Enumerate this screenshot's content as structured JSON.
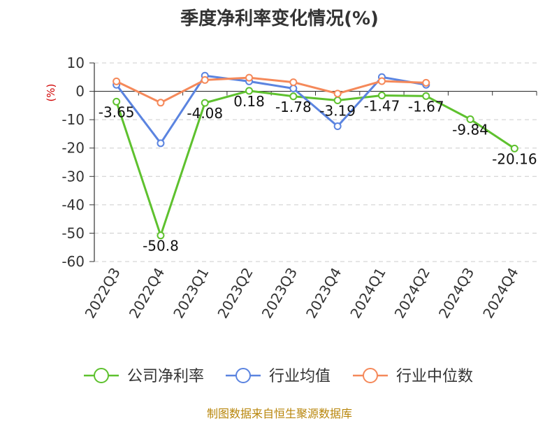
{
  "chart_data": {
    "type": "line",
    "title": "季度净利率变化情况(%)",
    "ylabel": "(%)",
    "ylim": [
      -60,
      10
    ],
    "yticks": [
      10,
      0,
      -10,
      -20,
      -30,
      -40,
      -50,
      -60
    ],
    "grid": true,
    "legend_position": "bottom",
    "categories": [
      "2022Q3",
      "2022Q4",
      "2023Q1",
      "2023Q2",
      "2023Q3",
      "2023Q4",
      "2024Q1",
      "2024Q2",
      "2024Q3",
      "2024Q4"
    ],
    "series": [
      {
        "name": "公司净利率",
        "color": "#5ec12e",
        "values": [
          -3.65,
          -50.8,
          -4.08,
          0.18,
          -1.78,
          -3.19,
          -1.47,
          -1.67,
          -9.84,
          -20.16
        ],
        "labels": [
          "-3.65",
          "-50.8",
          "-4.08",
          "0.18",
          "-1.78",
          "-3.19",
          "-1.47",
          "-1.67",
          "-9.84",
          "-20.16"
        ]
      },
      {
        "name": "行业均值",
        "color": "#5b84e0",
        "values": [
          2.3,
          -18.3,
          5.5,
          3.5,
          1.0,
          -12.3,
          5.0,
          2.3,
          null,
          null
        ]
      },
      {
        "name": "行业中位数",
        "color": "#f5895a",
        "values": [
          3.5,
          -4.0,
          4.0,
          4.8,
          3.2,
          -0.8,
          3.6,
          3.0,
          null,
          null
        ]
      }
    ]
  },
  "source_note": "制图数据来自恒生聚源数据库"
}
